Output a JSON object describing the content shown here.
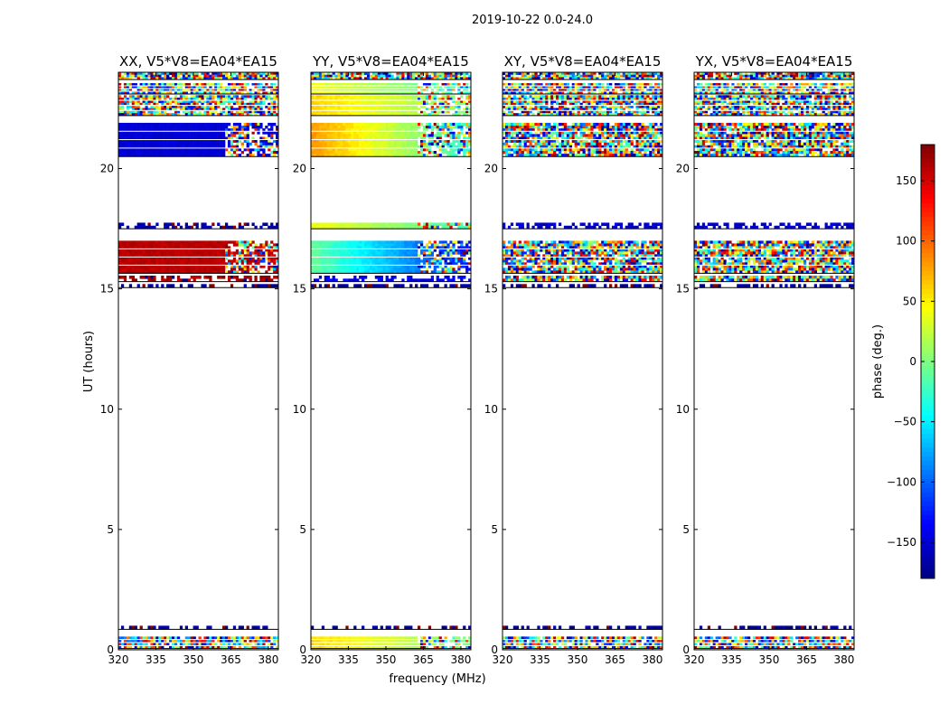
{
  "suptitle": "2019-10-22 0.0-24.0",
  "xlabel": "frequency (MHz)",
  "ylabel": "UT (hours)",
  "colorbar": {
    "label": "phase (deg.)",
    "ticks": [
      150,
      100,
      50,
      0,
      -50,
      -100,
      -150
    ],
    "tick_labels": [
      "150",
      "100",
      "50",
      "0",
      "−50",
      "−100",
      "−150"
    ],
    "range": [
      -180,
      180
    ],
    "colormap": "jet"
  },
  "chart_data": [
    {
      "type": "heatmap",
      "title": "XX, V5*V8=EA04*EA15",
      "xlim": [
        320,
        384
      ],
      "ylim": [
        0,
        24
      ],
      "xticks": [
        320,
        335,
        350,
        365,
        380
      ],
      "yticks": [
        0,
        5,
        10,
        15,
        20
      ],
      "bands": [
        {
          "y": [
            0.05,
            0.55
          ],
          "mode": "noisy",
          "base": -150
        },
        {
          "y": [
            0.85,
            1.0
          ],
          "mode": "dots",
          "base": -170
        },
        {
          "y": [
            15.05,
            15.2
          ],
          "mode": "dots",
          "base": -170
        },
        {
          "y": [
            15.3,
            15.55
          ],
          "mode": "dots",
          "base": 170
        },
        {
          "y": [
            15.65,
            17.0
          ],
          "mode": "smooth",
          "base": 160,
          "drift": 0
        },
        {
          "y": [
            17.5,
            17.75
          ],
          "mode": "dots",
          "base": -170
        },
        {
          "y": [
            20.5,
            21.9
          ],
          "mode": "smooth",
          "base": -150,
          "drift": 0
        },
        {
          "y": [
            22.2,
            23.05
          ],
          "mode": "noisy",
          "base": -150
        },
        {
          "y": [
            23.1,
            23.55
          ],
          "mode": "noisy",
          "base": -150
        },
        {
          "y": [
            23.7,
            24.0
          ],
          "mode": "noisy",
          "base": -150
        }
      ]
    },
    {
      "type": "heatmap",
      "title": "YY, V5*V8=EA04*EA15",
      "xlim": [
        320,
        384
      ],
      "ylim": [
        0,
        24
      ],
      "xticks": [
        320,
        335,
        350,
        365,
        380
      ],
      "yticks": [
        0,
        5,
        10,
        15,
        20
      ],
      "bands": [
        {
          "y": [
            0.05,
            0.55
          ],
          "mode": "smooth",
          "base": 60,
          "drift": -60
        },
        {
          "y": [
            0.85,
            1.0
          ],
          "mode": "dots",
          "base": -170
        },
        {
          "y": [
            15.05,
            15.2
          ],
          "mode": "dots",
          "base": -170
        },
        {
          "y": [
            15.3,
            15.55
          ],
          "mode": "dots",
          "base": -140
        },
        {
          "y": [
            15.65,
            17.0
          ],
          "mode": "smooth",
          "base": -10,
          "drift": -120
        },
        {
          "y": [
            17.5,
            17.75
          ],
          "mode": "smooth",
          "base": 40,
          "drift": -60
        },
        {
          "y": [
            20.5,
            21.9
          ],
          "mode": "smooth",
          "base": 80,
          "drift": -110
        },
        {
          "y": [
            22.2,
            23.05
          ],
          "mode": "smooth",
          "base": 60,
          "drift": -60
        },
        {
          "y": [
            23.1,
            23.55
          ],
          "mode": "smooth",
          "base": 40,
          "drift": -60
        },
        {
          "y": [
            23.7,
            24.0
          ],
          "mode": "noisy",
          "base": 0
        }
      ]
    },
    {
      "type": "heatmap",
      "title": "XY, V5*V8=EA04*EA15",
      "xlim": [
        320,
        384
      ],
      "ylim": [
        0,
        24
      ],
      "xticks": [
        320,
        335,
        350,
        365,
        380
      ],
      "yticks": [
        0,
        5,
        10,
        15,
        20
      ],
      "bands": [
        {
          "y": [
            0.05,
            0.55
          ],
          "mode": "noisy",
          "base": 0
        },
        {
          "y": [
            0.85,
            1.0
          ],
          "mode": "dots",
          "base": -170
        },
        {
          "y": [
            15.05,
            15.2
          ],
          "mode": "dots",
          "base": -170
        },
        {
          "y": [
            15.3,
            15.55
          ],
          "mode": "noisy",
          "base": 0
        },
        {
          "y": [
            15.65,
            17.0
          ],
          "mode": "noisy",
          "base": 120
        },
        {
          "y": [
            17.5,
            17.75
          ],
          "mode": "dots",
          "base": -150
        },
        {
          "y": [
            20.5,
            21.9
          ],
          "mode": "noisy",
          "base": 0
        },
        {
          "y": [
            22.2,
            23.05
          ],
          "mode": "noisy",
          "base": 0
        },
        {
          "y": [
            23.1,
            23.55
          ],
          "mode": "noisy",
          "base": 0
        },
        {
          "y": [
            23.7,
            24.0
          ],
          "mode": "noisy",
          "base": 0
        }
      ]
    },
    {
      "type": "heatmap",
      "title": "YX, V5*V8=EA04*EA15",
      "xlim": [
        320,
        384
      ],
      "ylim": [
        0,
        24
      ],
      "xticks": [
        320,
        335,
        350,
        365,
        380
      ],
      "yticks": [
        0,
        5,
        10,
        15,
        20
      ],
      "bands": [
        {
          "y": [
            0.05,
            0.55
          ],
          "mode": "noisy",
          "base": 0
        },
        {
          "y": [
            0.85,
            1.0
          ],
          "mode": "dots",
          "base": -170
        },
        {
          "y": [
            15.05,
            15.2
          ],
          "mode": "dots",
          "base": -170
        },
        {
          "y": [
            15.3,
            15.55
          ],
          "mode": "noisy",
          "base": 0
        },
        {
          "y": [
            15.65,
            17.0
          ],
          "mode": "noisy",
          "base": 120
        },
        {
          "y": [
            17.5,
            17.75
          ],
          "mode": "dots",
          "base": -150
        },
        {
          "y": [
            20.5,
            21.9
          ],
          "mode": "noisy",
          "base": 0
        },
        {
          "y": [
            22.2,
            23.05
          ],
          "mode": "noisy",
          "base": 0
        },
        {
          "y": [
            23.1,
            23.55
          ],
          "mode": "noisy",
          "base": 0
        },
        {
          "y": [
            23.7,
            24.0
          ],
          "mode": "noisy",
          "base": 0
        }
      ]
    }
  ]
}
